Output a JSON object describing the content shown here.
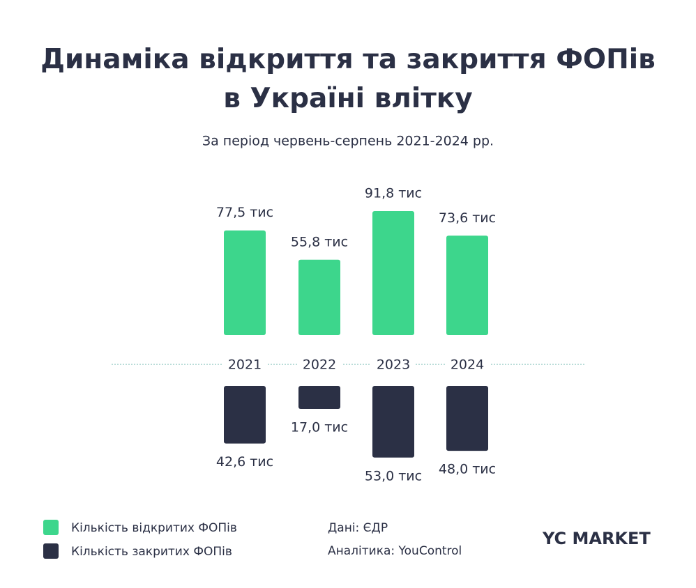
{
  "chart_data": {
    "type": "diverging-bar",
    "title": "Динаміка відкриття та закриття ФОПів в Україні влітку",
    "subtitle": "За період червень-серпень 2021-2024 рр.",
    "categories": [
      "2021",
      "2022",
      "2023",
      "2024"
    ],
    "series": [
      {
        "name": "Кількість відкритих ФОПів",
        "color": "#3dd68c",
        "values": [
          77.5,
          55.8,
          91.8,
          73.6
        ],
        "value_labels": [
          "77,5 тис",
          "55,8 тис",
          "91,8 тис",
          "73,6 тис"
        ]
      },
      {
        "name": "Кількість закритих ФОПів",
        "color": "#2b3045",
        "values": [
          42.6,
          17.0,
          53.0,
          48.0
        ],
        "value_labels": [
          "42,6 тис",
          "17,0 тис",
          "53,0 тис",
          "48,0 тис"
        ]
      }
    ],
    "source": "Дані: ЄДР",
    "analytics": "Аналітика: YouControl",
    "brand": "YC MARKET"
  }
}
